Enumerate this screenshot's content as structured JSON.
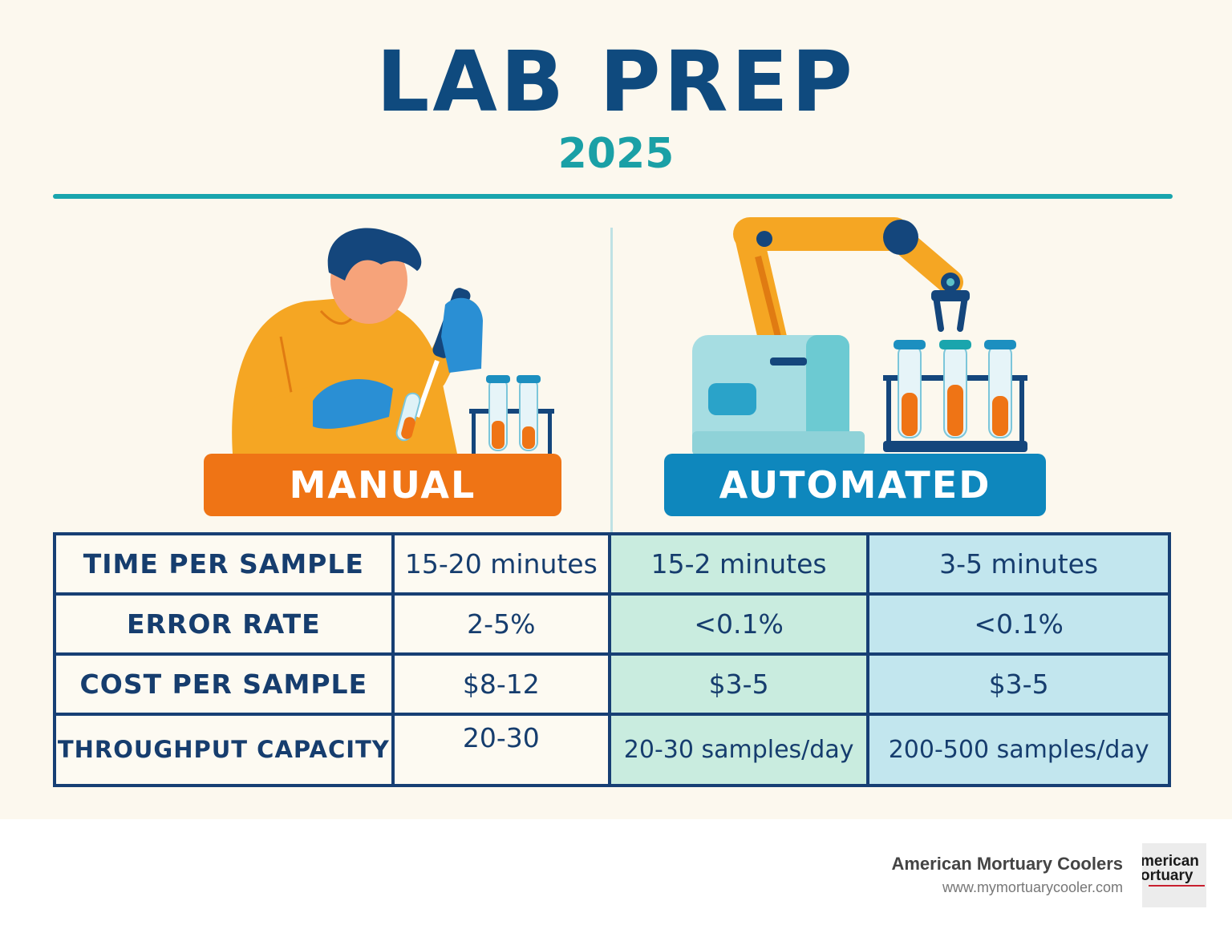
{
  "header": {
    "title": "LAB PREP",
    "year": "2025"
  },
  "labels": {
    "manual": "MANUAL",
    "automated": "AUTOMATED"
  },
  "table": {
    "rows": [
      {
        "metric": "TIME PER SAMPLE",
        "manual": "15-20 minutes",
        "auto_a": "15-2 minutes",
        "auto_b": "3-5 minutes"
      },
      {
        "metric": "ERROR RATE",
        "manual": "2-5%",
        "auto_a": "<0.1%",
        "auto_b": "<0.1%"
      },
      {
        "metric": "COST PER SAMPLE",
        "manual": "$8-12",
        "auto_a": "$3-5",
        "auto_b": "$3-5"
      },
      {
        "metric": "THROUGHPUT CAPACITY",
        "manual": "20-30",
        "auto_a": "20-30 samples/day",
        "auto_b": "200-500 samples/day"
      }
    ]
  },
  "brand": {
    "name": "American Mortuary Coolers",
    "url": "www.mymortuarycooler.com",
    "logo_text": [
      "merican",
      "ortuary"
    ]
  },
  "colors": {
    "title": "#0f4a7e",
    "accent": "#1aa0a6",
    "manual": "#ef7415",
    "automated": "#0e87bd",
    "table_border": "#173f74"
  }
}
